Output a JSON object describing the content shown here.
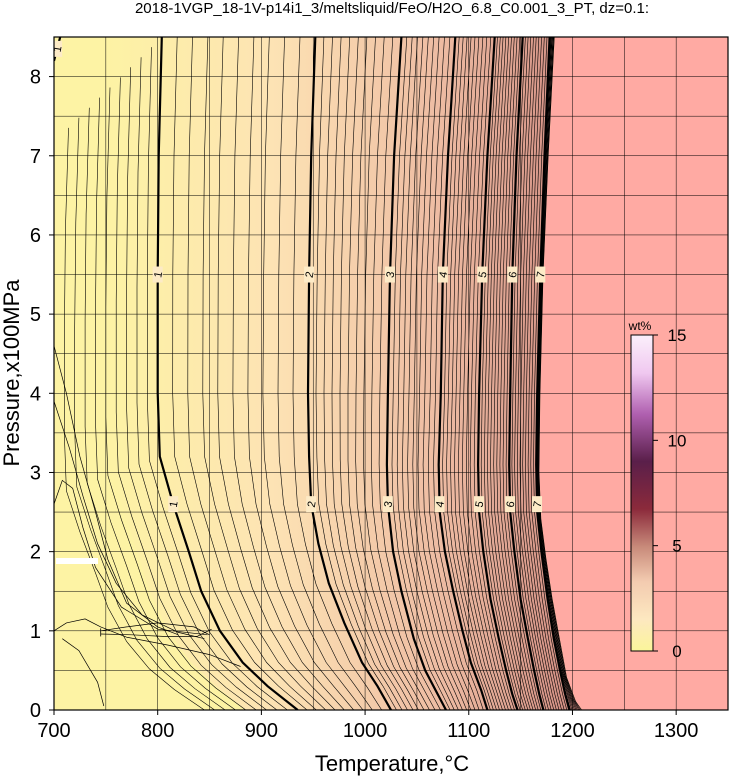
{
  "chart_data": {
    "type": "heatmap",
    "title": "2018-1VGP_18-1V-p14i1_3/meltsliquid/FeO/H2O_6.8_C0.001_3_PT, dz=0.1:",
    "xlabel": "Temperature,°C",
    "ylabel": "Pressure,x100MPa",
    "xlim": [
      700,
      1350
    ],
    "ylim": [
      0,
      8.5
    ],
    "x_ticks": [
      700,
      800,
      900,
      1000,
      1100,
      1200,
      1300
    ],
    "y_ticks": [
      0,
      1,
      2,
      3,
      4,
      5,
      6,
      7,
      8
    ],
    "grid": true,
    "contour_interval": 0.1,
    "major_contours": [
      {
        "level": 1,
        "points": [
          [
            706,
            8.5
          ],
          [
            702,
            8.3
          ],
          [
            700,
            8.2
          ]
        ]
      },
      {
        "level": 1,
        "points": [
          [
            804,
            8.5
          ],
          [
            801,
            7
          ],
          [
            800,
            5.5
          ],
          [
            800,
            4
          ],
          [
            802,
            3.2
          ],
          [
            815,
            2.6
          ],
          [
            830,
            2.0
          ],
          [
            842,
            1.5
          ],
          [
            860,
            1.0
          ],
          [
            882,
            0.6
          ],
          [
            906,
            0.3
          ],
          [
            935,
            0
          ]
        ]
      },
      {
        "level": 2,
        "points": [
          [
            952,
            8.5
          ],
          [
            948,
            7
          ],
          [
            946,
            5.5
          ],
          [
            945,
            4
          ],
          [
            946,
            3.2
          ],
          [
            948,
            2.6
          ],
          [
            955,
            2.1
          ],
          [
            965,
            1.6
          ],
          [
            980,
            1.1
          ],
          [
            997,
            0.6
          ],
          [
            1012,
            0.3
          ],
          [
            1025,
            0
          ]
        ]
      },
      {
        "level": 3,
        "points": [
          [
            1035,
            8.5
          ],
          [
            1028,
            7
          ],
          [
            1024,
            5.5
          ],
          [
            1022,
            4
          ],
          [
            1021,
            3.1
          ],
          [
            1022,
            2.6
          ],
          [
            1027,
            2.0
          ],
          [
            1035,
            1.5
          ],
          [
            1047,
            0.9
          ],
          [
            1058,
            0.5
          ],
          [
            1070,
            0.2
          ],
          [
            1078,
            0
          ]
        ]
      },
      {
        "level": 4,
        "points": [
          [
            1087,
            8.5
          ],
          [
            1080,
            7
          ],
          [
            1075,
            5.5
          ],
          [
            1073,
            4
          ],
          [
            1071,
            3.1
          ],
          [
            1072,
            2.5
          ],
          [
            1077,
            2.0
          ],
          [
            1085,
            1.5
          ],
          [
            1094,
            1.0
          ],
          [
            1102,
            0.6
          ],
          [
            1112,
            0.25
          ],
          [
            1118,
            0
          ]
        ]
      },
      {
        "level": 5,
        "points": [
          [
            1125,
            8.5
          ],
          [
            1118,
            7
          ],
          [
            1113,
            5.5
          ],
          [
            1110,
            4
          ],
          [
            1109,
            3.1
          ],
          [
            1110,
            2.5
          ],
          [
            1114,
            2.0
          ],
          [
            1121,
            1.4
          ],
          [
            1129,
            0.9
          ],
          [
            1136,
            0.5
          ],
          [
            1142,
            0.2
          ],
          [
            1147,
            0
          ]
        ]
      },
      {
        "level": 6,
        "points": [
          [
            1152,
            8.5
          ],
          [
            1146,
            7
          ],
          [
            1142,
            5.5
          ],
          [
            1140,
            4
          ],
          [
            1139,
            3.1
          ],
          [
            1140,
            2.5
          ],
          [
            1144,
            2.0
          ],
          [
            1150,
            1.4
          ],
          [
            1157,
            0.9
          ],
          [
            1163,
            0.5
          ],
          [
            1168,
            0.2
          ],
          [
            1172,
            0
          ]
        ]
      },
      {
        "level": 7,
        "points": [
          [
            1178,
            8.5
          ],
          [
            1173,
            7
          ],
          [
            1169,
            5.5
          ],
          [
            1166,
            4
          ],
          [
            1165,
            3.1
          ],
          [
            1166,
            2.5
          ],
          [
            1170,
            2.0
          ],
          [
            1176,
            1.4
          ],
          [
            1182,
            0.9
          ],
          [
            1188,
            0.5
          ],
          [
            1193,
            0.2
          ],
          [
            1197,
            0
          ]
        ]
      }
    ],
    "liquid_boundary": [
      [
        1183,
        8.5
      ],
      [
        1177,
        7
      ],
      [
        1172,
        5.5
      ],
      [
        1169,
        4
      ],
      [
        1168,
        3.0
      ],
      [
        1170,
        2.4
      ],
      [
        1175,
        1.9
      ],
      [
        1181,
        1.4
      ],
      [
        1188,
        0.9
      ],
      [
        1195,
        0.4
      ],
      [
        1204,
        0.1
      ],
      [
        1210,
        0
      ]
    ],
    "colorbar": {
      "label": "wt%",
      "range": [
        0,
        15
      ],
      "ticks": [
        0,
        5,
        10,
        15
      ],
      "colors": [
        "#fbf59a",
        "#fde8c0",
        "#f3cbb0",
        "#c88a7a",
        "#8b2a3b",
        "#5a1f4a",
        "#b060b0",
        "#f0c8f0",
        "#fbf0fb"
      ]
    },
    "colors": {
      "solid_fill": "#fdf3a4",
      "liquid_fill": "#ffaaa3",
      "contour": "#000000"
    }
  }
}
